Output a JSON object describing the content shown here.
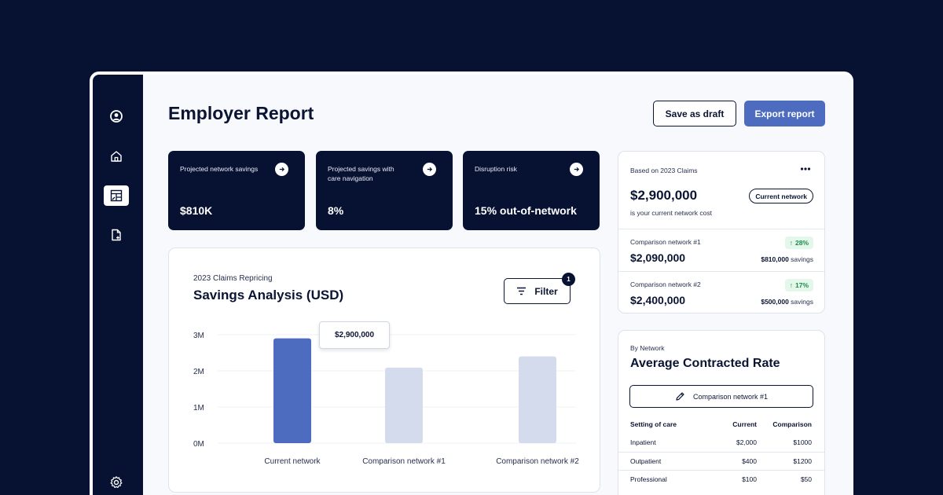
{
  "page": {
    "title": "Employer Report"
  },
  "actions": {
    "save_draft": "Save as draft",
    "export": "Export report"
  },
  "sidebar": {
    "icons": [
      "user-icon",
      "home-icon",
      "report-icon",
      "add-document-icon",
      "settings-icon"
    ],
    "active": "report-icon"
  },
  "kpis": [
    {
      "label": "Projected network savings",
      "value": "$810K"
    },
    {
      "label": "Projected savings with care navigation",
      "value": "8%"
    },
    {
      "label": "Disruption risk",
      "value": "15% out-of-network"
    }
  ],
  "chart_card": {
    "subtitle": "2023 Claims Repricing",
    "title": "Savings Analysis (USD)",
    "filter_label": "Filter",
    "filter_count": "1",
    "tooltip": "$2,900,000"
  },
  "chart_data": {
    "type": "bar",
    "categories": [
      "Current network",
      "Comparison network #1",
      "Comparison network #2"
    ],
    "values": [
      2900000,
      2090000,
      2400000
    ],
    "y_ticks": [
      "0M",
      "1M",
      "2M",
      "3M"
    ],
    "ylim": [
      0,
      3000000
    ],
    "highlighted_index": 0,
    "colors": {
      "highlight": "#4d6cc0",
      "default": "#d3dbec"
    },
    "grid": true
  },
  "network_card": {
    "basis": "Based on 2023 Claims",
    "amount": "$2,900,000",
    "caption": "is your current network cost",
    "badge": "Current network",
    "comparisons": [
      {
        "name": "Comparison network #1",
        "amount": "$2,090,000",
        "pct": "28%",
        "savings_amount": "$810,000",
        "savings_word": "savings"
      },
      {
        "name": "Comparison network #2",
        "amount": "$2,400,000",
        "pct": "17%",
        "savings_amount": "$500,000",
        "savings_word": "savings"
      }
    ]
  },
  "rate_card": {
    "subtitle": "By Network",
    "title": "Average Contracted Rate",
    "selected_network": "Comparison network #1",
    "columns": [
      "Setting of care",
      "Current",
      "Comparison"
    ],
    "rows": [
      [
        "Inpatient",
        "$2,000",
        "$1000"
      ],
      [
        "Outpatient",
        "$400",
        "$1200"
      ],
      [
        "Professional",
        "$100",
        "$50"
      ]
    ]
  },
  "colors": {
    "navy": "#071233",
    "accent": "#4d6cc0",
    "success": "#1f8a4c"
  }
}
